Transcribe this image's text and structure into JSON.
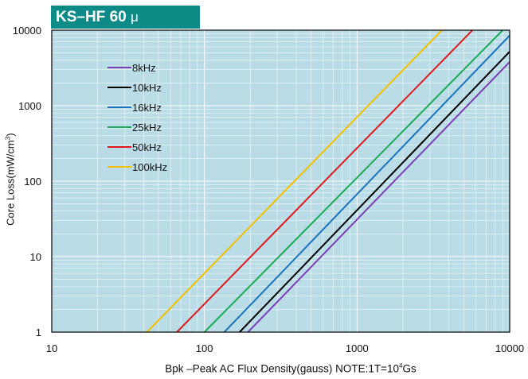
{
  "title": {
    "main": "KS–HF 60",
    "unit": "μ"
  },
  "xlabel": {
    "pre": "Bpk –Peak AC Flux Density(gauss)  NOTE:1T=10",
    "sup": "4",
    "post": "Gs"
  },
  "ylabel": {
    "pre": "Core Loss(mW/cm",
    "sup": "3",
    "post": ")"
  },
  "colors": {
    "background": "#b9dce6",
    "grid": "#ffffff",
    "frame": "#000000"
  },
  "chart_data": {
    "type": "line",
    "xscale": "log",
    "yscale": "log",
    "xlim": [
      10,
      10000
    ],
    "ylim": [
      1,
      10000
    ],
    "x_ticks": [
      "10",
      "100",
      "1000",
      "10000"
    ],
    "y_ticks": [
      "1",
      "10",
      "100",
      "1000",
      "10000"
    ],
    "grid": true,
    "legend_position": "top-left",
    "series": [
      {
        "name": "8kHz",
        "color": "#7b3fb5",
        "x": [
          193,
          10000
        ],
        "y": [
          1,
          3800
        ]
      },
      {
        "name": "10kHz",
        "color": "#000000",
        "x": [
          170,
          10000
        ],
        "y": [
          1,
          5200
        ]
      },
      {
        "name": "16kHz",
        "color": "#1a74bd",
        "x": [
          135,
          10000
        ],
        "y": [
          1,
          8500
        ]
      },
      {
        "name": "25kHz",
        "color": "#1aaa55",
        "x": [
          100,
          9000
        ],
        "y": [
          1,
          10000
        ]
      },
      {
        "name": "50kHz",
        "color": "#e0191d",
        "x": [
          66,
          5700
        ],
        "y": [
          1,
          10000
        ]
      },
      {
        "name": "100kHz",
        "color": "#f3c000",
        "x": [
          42,
          3600
        ],
        "y": [
          1,
          10000
        ]
      }
    ]
  }
}
